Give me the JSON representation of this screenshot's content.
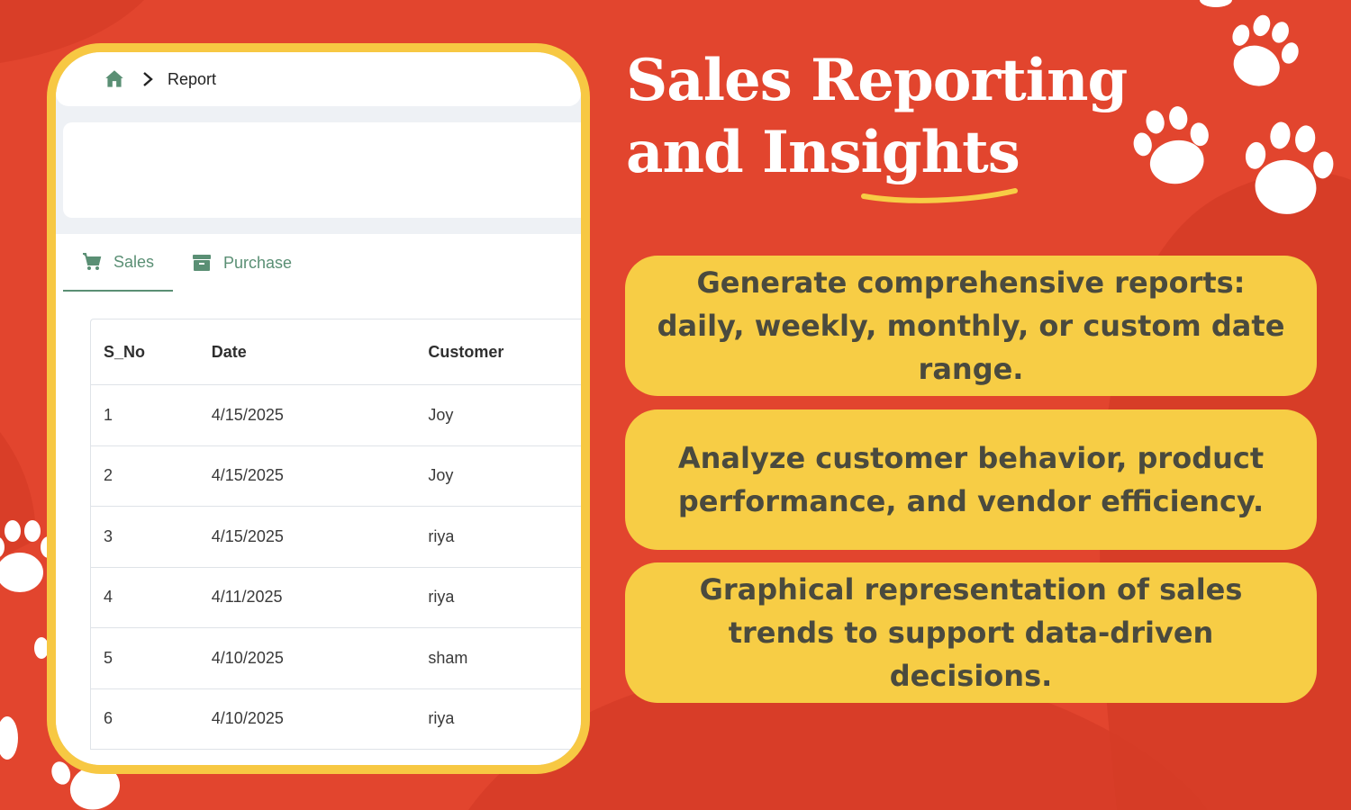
{
  "breadcrumb": {
    "home_icon": "home-icon",
    "separator_icon": "chevron-right-icon",
    "current": "Report"
  },
  "tabs": [
    {
      "label": "Sales",
      "icon": "cart-icon",
      "active": true
    },
    {
      "label": "Purchase",
      "icon": "archive-icon",
      "active": false
    }
  ],
  "table": {
    "headers": [
      "S_No",
      "Date",
      "Customer"
    ],
    "rows": [
      [
        "1",
        "4/15/2025",
        "Joy"
      ],
      [
        "2",
        "4/15/2025",
        "Joy"
      ],
      [
        "3",
        "4/15/2025",
        "riya"
      ],
      [
        "4",
        "4/11/2025",
        "riya"
      ],
      [
        "5",
        "4/10/2025",
        "sham"
      ],
      [
        "6",
        "4/10/2025",
        "riya"
      ]
    ]
  },
  "headline": {
    "line1": "Sales Reporting",
    "line2": "and Insights"
  },
  "features": [
    "Generate comprehensive reports: daily, weekly, monthly, or custom date range.",
    "Analyze customer behavior, product performance, and vendor efficiency.",
    "Graphical representation of sales trends to support data-driven decisions."
  ],
  "colors": {
    "background": "#e2452e",
    "accent_yellow": "#f7cd45",
    "tab_green": "#5a8f74",
    "frame_yellow": "#f7c843"
  }
}
